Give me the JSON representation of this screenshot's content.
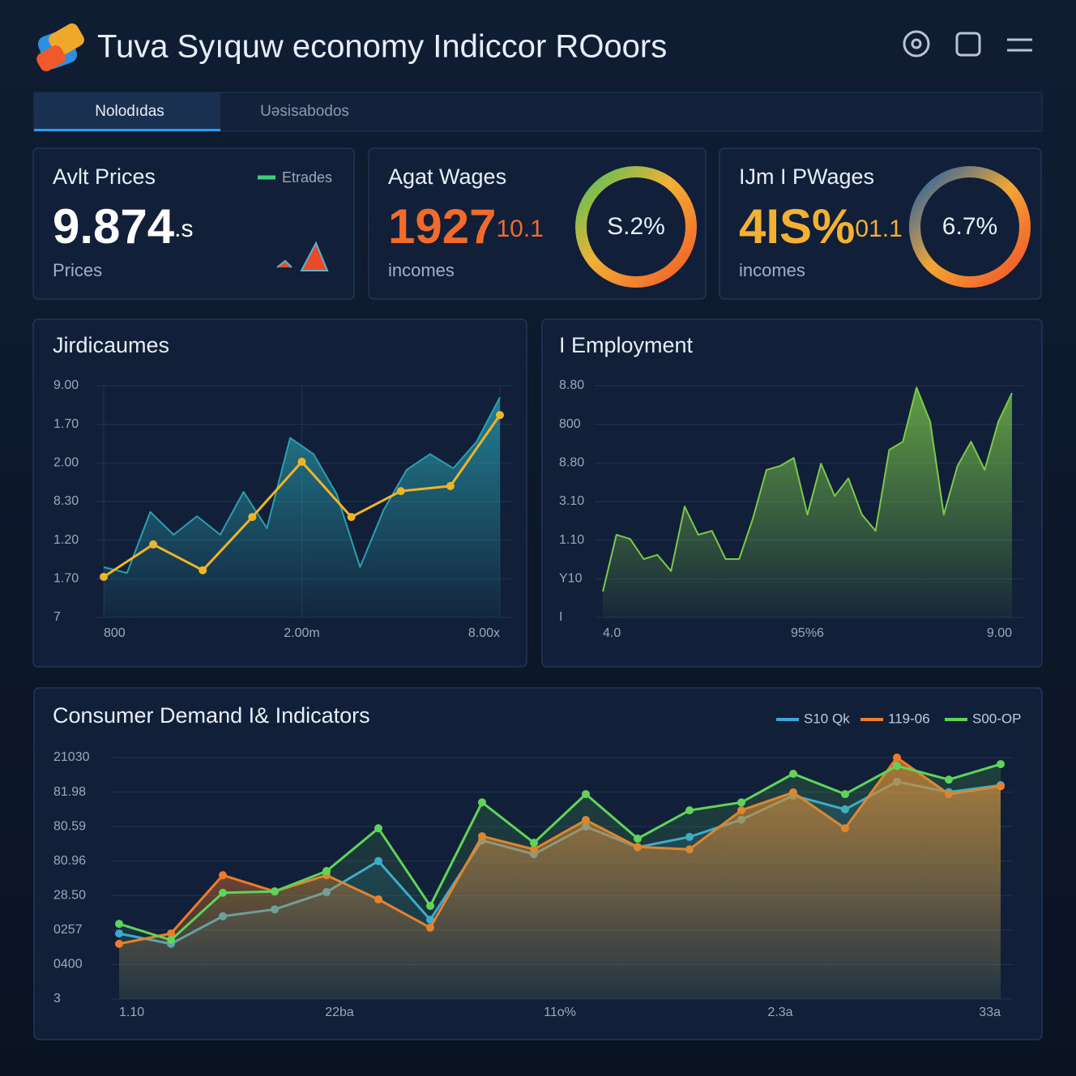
{
  "header": {
    "title": "Tuva Syıquw economy Indiccor ROoors",
    "tabs": [
      "Nolodıdas",
      "Uəsisabodos"
    ],
    "active_tab": 0
  },
  "cards": [
    {
      "title": "Avlt Prices",
      "legend": "Etrades",
      "value": "9.874",
      "suffix": ".s",
      "caption": "Prices",
      "color": "#ffffff"
    },
    {
      "title": "Agat Wages",
      "value": "1927",
      "suffix": "10.1",
      "caption": "incomes",
      "ring": "S.2%",
      "color": "#f26b2a"
    },
    {
      "title": "IJm I PWages",
      "value": "4IS%",
      "suffix": "01.1",
      "caption": "incomes",
      "ring": "6.7%",
      "color": "#f2b134"
    }
  ],
  "chart_data": [
    {
      "type": "area",
      "title": "Jirdicaumes",
      "ylim": [
        0,
        6
      ],
      "yticks": [
        {
          "value": 6,
          "label": "9.00"
        },
        {
          "value": 5,
          "label": "1.70"
        },
        {
          "value": 4,
          "label": "2.00"
        },
        {
          "value": 3,
          "label": "8.30"
        },
        {
          "value": 2,
          "label": "1.20"
        },
        {
          "value": 1,
          "label": "1.70"
        },
        {
          "value": 0,
          "label": "7"
        }
      ],
      "xlabels": [
        "800",
        "2.00m",
        "8.00x"
      ],
      "series": [
        {
          "style": "area",
          "color": "#2a9fb0",
          "values": [
            1.3,
            1.15,
            2.73,
            2.14,
            2.62,
            2.14,
            3.25,
            2.31,
            4.65,
            4.23,
            3.19,
            1.3,
            2.77,
            3.82,
            4.23,
            3.86,
            4.55,
            5.7
          ]
        },
        {
          "style": "line",
          "color": "#f0b429",
          "values": [
            1.05,
            1.89,
            1.22,
            2.6,
            4.03,
            2.6,
            3.27,
            3.4,
            5.24
          ]
        }
      ]
    },
    {
      "type": "area",
      "title": "I Employment",
      "ylim": [
        0,
        6
      ],
      "yticks": [
        {
          "value": 6,
          "label": "8.80"
        },
        {
          "value": 5,
          "label": "800"
        },
        {
          "value": 4,
          "label": "8.80"
        },
        {
          "value": 3,
          "label": "3.10"
        },
        {
          "value": 2,
          "label": "1.10"
        },
        {
          "value": 1,
          "label": "Y10"
        },
        {
          "value": 0,
          "label": "I"
        }
      ],
      "xlabels": [
        "4.0",
        "95%6",
        "9.00"
      ],
      "series": [
        {
          "style": "area",
          "color": "#7cc84a",
          "values": [
            0.67,
            2.14,
            2.03,
            1.51,
            1.62,
            1.2,
            2.87,
            2.14,
            2.24,
            1.51,
            1.51,
            2.56,
            3.82,
            3.92,
            4.13,
            2.66,
            3.98,
            3.14,
            3.6,
            2.66,
            2.24,
            4.34,
            4.55,
            5.95,
            5.07,
            2.66,
            3.92,
            4.55,
            3.82,
            5.07,
            5.81
          ]
        }
      ]
    },
    {
      "type": "area",
      "title": "Consumer Demand I& Indicators",
      "ylim": [
        0,
        7
      ],
      "yticks": [
        {
          "value": 7,
          "label": "21030"
        },
        {
          "value": 6,
          "label": "81.98"
        },
        {
          "value": 5,
          "label": "80.59"
        },
        {
          "value": 4,
          "label": "80.96"
        },
        {
          "value": 3,
          "label": "28.50"
        },
        {
          "value": 2,
          "label": "0257"
        },
        {
          "value": 1,
          "label": "0400"
        },
        {
          "value": 0,
          "label": "3"
        }
      ],
      "xlabels": [
        "1.10",
        "22ba",
        "11o%",
        "2.3a",
        "33a"
      ],
      "series": [
        {
          "name": "S10 Qk",
          "style": "line",
          "color": "#3aa6d8",
          "values": [
            1.9,
            1.6,
            2.4,
            2.6,
            3.1,
            4.0,
            2.3,
            4.6,
            4.2,
            5.0,
            4.4,
            4.7,
            5.2,
            5.9,
            5.5,
            6.3,
            6.0,
            6.2
          ]
        },
        {
          "name": "119-06",
          "style": "area-line",
          "color": "#f07a2a",
          "values": [
            1.6,
            1.9,
            3.59,
            3.12,
            3.59,
            2.89,
            2.07,
            4.72,
            4.34,
            5.19,
            4.41,
            4.34,
            5.47,
            5.99,
            4.95,
            7.0,
            5.94,
            6.17
          ]
        },
        {
          "name": "S00-OP",
          "style": "line",
          "color": "#5fd35a",
          "values": [
            2.18,
            1.71,
            3.08,
            3.12,
            3.71,
            4.95,
            2.7,
            5.7,
            4.53,
            5.94,
            4.65,
            5.47,
            5.7,
            6.53,
            5.94,
            6.76,
            6.36,
            6.81
          ]
        }
      ]
    }
  ]
}
